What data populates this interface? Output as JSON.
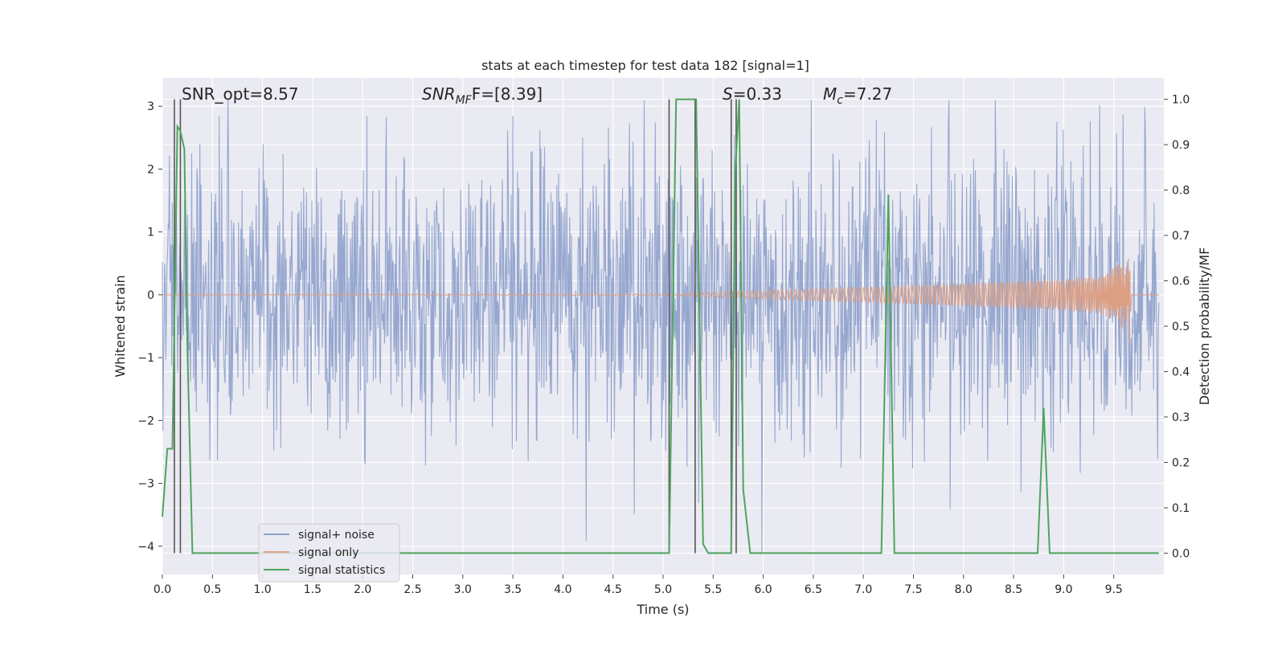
{
  "chart_data": {
    "type": "line",
    "title": "stats at each timestep for test data 182 [signal=1]",
    "xlabel": "Time (s)",
    "ylabel_left": "Whitened strain",
    "ylabel_right": "Detection probability/MF",
    "xlim": [
      0.0,
      10.0
    ],
    "ylim_left": [
      -4.45,
      3.45
    ],
    "ylim_right": [
      -0.047,
      1.047
    ],
    "x_ticks": [
      0.0,
      0.5,
      1.0,
      1.5,
      2.0,
      2.5,
      3.0,
      3.5,
      4.0,
      4.5,
      5.0,
      5.5,
      6.0,
      6.5,
      7.0,
      7.5,
      8.0,
      8.5,
      9.0,
      9.5
    ],
    "x_tick_labels": [
      "0.0",
      "0.5",
      "1.0",
      "1.5",
      "2.0",
      "2.5",
      "3.0",
      "3.5",
      "4.0",
      "4.5",
      "5.0",
      "5.5",
      "6.0",
      "6.5",
      "7.0",
      "7.5",
      "8.0",
      "8.5",
      "9.0",
      "9.5"
    ],
    "y_left_ticks": [
      3,
      2,
      1,
      0,
      -1,
      -2,
      -3,
      -4
    ],
    "y_left_tick_labels": [
      "3",
      "2",
      "1",
      "0",
      "−1",
      "−2",
      "−3",
      "−4"
    ],
    "y_right_ticks": [
      1.0,
      0.9,
      0.8,
      0.7,
      0.6,
      0.5,
      0.4,
      0.3,
      0.2,
      0.1,
      0.0
    ],
    "y_right_tick_labels": [
      "1.0",
      "0.9",
      "0.8",
      "0.7",
      "0.6",
      "0.5",
      "0.4",
      "0.3",
      "0.2",
      "0.1",
      "0.0"
    ],
    "grid": true,
    "legend_position": "lower-left",
    "annotations": {
      "snr_opt": "SNR_opt=8.57",
      "snr_mf_base": "SNR",
      "snr_mf_sub": "MF",
      "snr_mf_rest": "F=[8.39]",
      "s_sym": "S",
      "s_rest": "=0.33",
      "mc_base": "M",
      "mc_sub": "c",
      "mc_rest": "=7.27"
    },
    "series": [
      {
        "name": "signal+ noise",
        "color": "#8da0cb",
        "description_of_envelope": {
          "x": [
            0.0,
            1.0,
            2.0,
            3.0,
            4.0,
            5.0,
            6.0,
            7.0,
            8.0,
            9.0,
            9.95
          ],
          "typical_upper": [
            1.6,
            1.6,
            1.5,
            1.6,
            1.6,
            1.6,
            1.6,
            1.6,
            1.6,
            1.6,
            1.6
          ],
          "typical_lower": [
            -1.6,
            -1.6,
            -1.5,
            -1.6,
            -1.6,
            -1.6,
            -1.6,
            -1.6,
            -1.6,
            -1.6,
            -1.6
          ]
        }
      },
      {
        "name": "signal only",
        "color": "#dd9f84",
        "envelope": {
          "x": [
            0.0,
            5.0,
            5.5,
            6.0,
            7.0,
            8.0,
            9.0,
            9.4,
            9.6,
            9.65,
            9.68,
            9.95
          ],
          "amplitude": [
            0.0,
            0.01,
            0.04,
            0.07,
            0.12,
            0.18,
            0.25,
            0.32,
            0.55,
            0.8,
            0.0,
            0.0
          ]
        }
      },
      {
        "name": "signal statistics",
        "color": "#4ea45d",
        "x": [
          0.0,
          0.05,
          0.1,
          0.15,
          0.18,
          0.22,
          0.25,
          0.3,
          5.06,
          5.13,
          5.18,
          5.25,
          5.33,
          5.4,
          5.45,
          5.68,
          5.72,
          5.76,
          5.8,
          5.87,
          7.18,
          7.25,
          7.31,
          8.74,
          8.8,
          8.86,
          9.95
        ],
        "values": [
          0.08,
          0.23,
          0.23,
          0.94,
          0.93,
          0.89,
          0.45,
          0.0,
          0.0,
          1.0,
          1.0,
          1.0,
          1.0,
          0.02,
          0.0,
          0.0,
          0.84,
          1.0,
          0.14,
          0.0,
          0.0,
          0.79,
          0.0,
          0.0,
          0.32,
          0.0,
          0.0
        ]
      }
    ],
    "vertical_markers_x": [
      0.12,
      0.18,
      5.06,
      5.32,
      5.68,
      5.73
    ]
  }
}
